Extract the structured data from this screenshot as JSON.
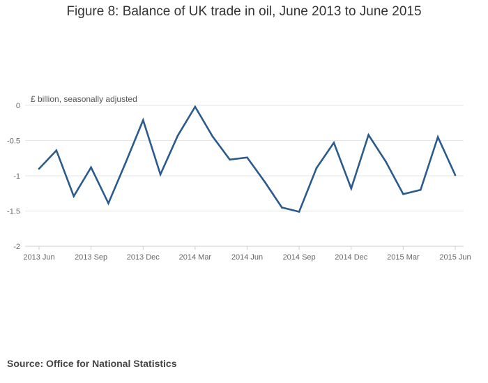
{
  "chart_data": {
    "type": "line",
    "title": "Figure 8: Balance of UK trade in oil, June 2013 to June 2015",
    "ylabel": "£ billion, seasonally adjusted",
    "xlabel": "",
    "ylim": [
      -2,
      0
    ],
    "yticks": [
      0,
      -0.5,
      -1,
      -1.5,
      -2
    ],
    "ytick_labels": [
      "0",
      "-0.5",
      "-1",
      "-1.5",
      "-2"
    ],
    "xtick_labels": [
      "2013 Jun",
      "2013 Sep",
      "2013 Dec",
      "2014 Mar",
      "2014 Jun",
      "2014 Sep",
      "2014 Dec",
      "2015 Mar",
      "2015 Jun"
    ],
    "xtick_every": 3,
    "grid": true,
    "legend": "none",
    "series_color": "#2a5b8c",
    "series": [
      {
        "name": "",
        "x": [
          "2013 Jun",
          "2013 Jul",
          "2013 Aug",
          "2013 Sep",
          "2013 Oct",
          "2013 Nov",
          "2013 Dec",
          "2014 Jan",
          "2014 Feb",
          "2014 Mar",
          "2014 Apr",
          "2014 May",
          "2014 Jun",
          "2014 Jul",
          "2014 Aug",
          "2014 Sep",
          "2014 Oct",
          "2014 Nov",
          "2014 Dec",
          "2015 Jan",
          "2015 Feb",
          "2015 Mar",
          "2015 Apr",
          "2015 May",
          "2015 Jun"
        ],
        "values": [
          -0.9,
          -0.64,
          -1.29,
          -0.88,
          -1.39,
          -0.81,
          -0.21,
          -0.98,
          -0.43,
          -0.02,
          -0.44,
          -0.77,
          -0.74,
          -1.08,
          -1.45,
          -1.51,
          -0.89,
          -0.53,
          -1.18,
          -0.42,
          -0.8,
          -1.26,
          -1.2,
          -0.45,
          -0.99
        ]
      }
    ]
  },
  "source": "Source: Office for National Statistics"
}
